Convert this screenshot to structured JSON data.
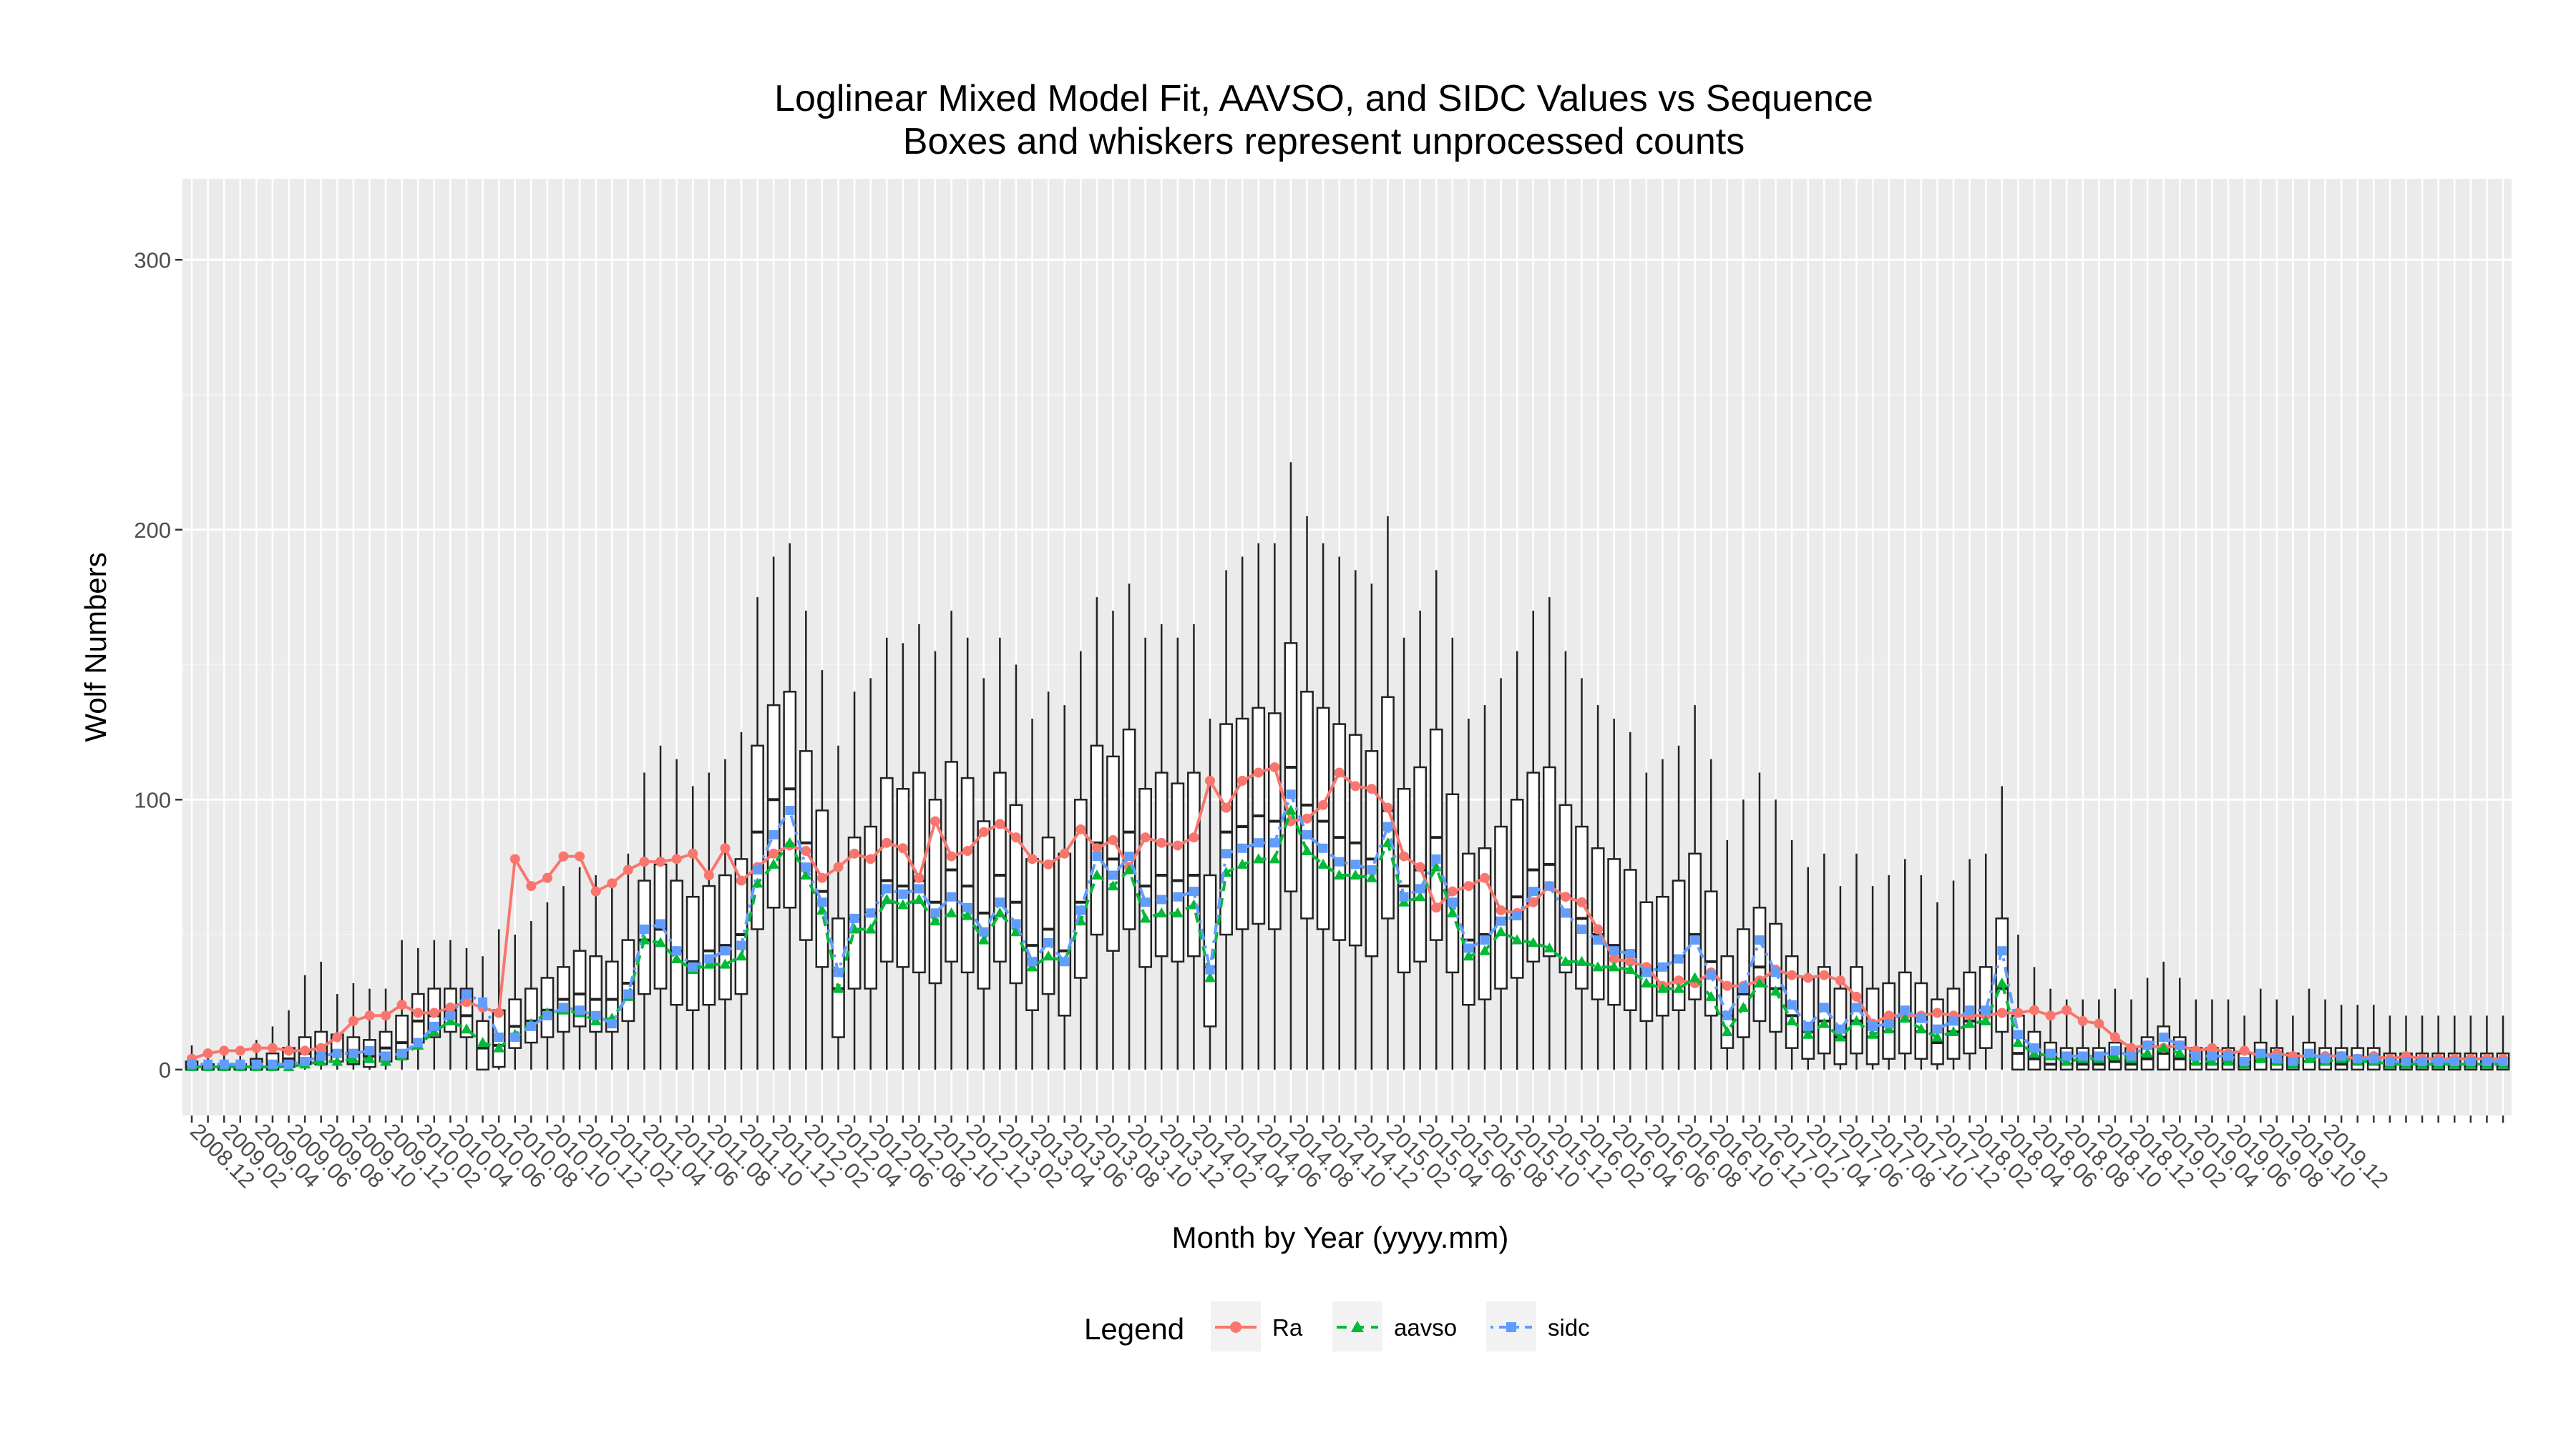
{
  "chart_data": {
    "type": "boxplot-line",
    "title": "Loglinear Mixed Model Fit, AAVSO, and SIDC Values vs Sequence",
    "subtitle": "Boxes and whiskers represent unprocessed counts",
    "xlabel": "Month by Year (yyyy.mm)",
    "ylabel": "Wolf Numbers",
    "ylim": [
      -17,
      330
    ],
    "yticks": [
      0,
      100,
      200,
      300
    ],
    "grid": true,
    "legend": {
      "title": "Legend",
      "position": "bottom",
      "entries": [
        {
          "name": "Ra",
          "color": "#F8766D",
          "marker": "circle",
          "dash": "solid"
        },
        {
          "name": "aavso",
          "color": "#00BA38",
          "marker": "triangle",
          "dash": "dashed"
        },
        {
          "name": "sidc",
          "color": "#619CFF",
          "marker": "square",
          "dash": "dotdash"
        }
      ]
    },
    "x_start": "2008.12",
    "x_tick_labels": [
      "2008.12",
      "2009.02",
      "2009.04",
      "2009.06",
      "2009.08",
      "2009.10",
      "2009.12",
      "2010.02",
      "2010.04",
      "2010.06",
      "2010.08",
      "2010.10",
      "2010.12",
      "2011.02",
      "2011.04",
      "2011.06",
      "2011.08",
      "2011.10",
      "2011.12",
      "2012.02",
      "2012.04",
      "2012.06",
      "2012.08",
      "2012.10",
      "2012.12",
      "2013.02",
      "2013.04",
      "2013.06",
      "2013.08",
      "2013.10",
      "2013.12",
      "2014.02",
      "2014.04",
      "2014.06",
      "2014.08",
      "2014.10",
      "2014.12",
      "2015.02",
      "2015.04",
      "2015.06",
      "2015.08",
      "2015.10",
      "2015.12",
      "2016.02",
      "2016.04",
      "2016.06",
      "2016.08",
      "2016.10",
      "2016.12",
      "2017.02",
      "2017.04",
      "2017.06",
      "2017.08",
      "2017.10",
      "2017.12",
      "2018.02",
      "2018.04",
      "2018.06",
      "2018.08",
      "2018.10",
      "2018.12",
      "2019.02",
      "2019.04",
      "2019.06",
      "2019.08",
      "2019.10",
      "2019.12"
    ],
    "series": [
      {
        "name": "Ra",
        "color": "#F8766D",
        "values": [
          4,
          6,
          7,
          7,
          8,
          8,
          7,
          7,
          8,
          12,
          18,
          20,
          20,
          24,
          21,
          21,
          23,
          25,
          23,
          21,
          78,
          68,
          71,
          79,
          79,
          66,
          69,
          74,
          77,
          77,
          78,
          80,
          72,
          82,
          70,
          75,
          80,
          83,
          81,
          71,
          75,
          80,
          78,
          84,
          82,
          71,
          92,
          79,
          81,
          88,
          91,
          86,
          78,
          76,
          80,
          89,
          82,
          85,
          75,
          86,
          84,
          83,
          86,
          107,
          97,
          107,
          110,
          112,
          92,
          93,
          98,
          110,
          105,
          104,
          97,
          79,
          75,
          60,
          66,
          68,
          71,
          59,
          58,
          62,
          68,
          64,
          62,
          52,
          41,
          40,
          38,
          31,
          33,
          32,
          36,
          31,
          31,
          33,
          37,
          35,
          34,
          35,
          33,
          27,
          17,
          20,
          20,
          20,
          21,
          20,
          20,
          20,
          21,
          21,
          22,
          20,
          22,
          18,
          17,
          12,
          8,
          9,
          8,
          9,
          7,
          8,
          6,
          7,
          5,
          6,
          5,
          5,
          5,
          5,
          4,
          5,
          4,
          5,
          4,
          4,
          4,
          4,
          4,
          4
        ]
      },
      {
        "name": "aavso",
        "color": "#00BA38",
        "values": [
          1,
          1,
          1,
          1,
          1,
          1,
          1,
          2,
          3,
          3,
          4,
          4,
          3,
          5,
          9,
          14,
          18,
          15,
          10,
          8,
          13,
          17,
          21,
          22,
          21,
          18,
          19,
          27,
          48,
          47,
          41,
          37,
          39,
          39,
          42,
          69,
          76,
          84,
          72,
          59,
          30,
          52,
          52,
          63,
          61,
          63,
          55,
          58,
          57,
          48,
          58,
          51,
          38,
          42,
          40,
          55,
          72,
          68,
          74,
          56,
          58,
          58,
          61,
          34,
          73,
          76,
          78,
          78,
          96,
          81,
          76,
          72,
          72,
          71,
          84,
          62,
          64,
          75,
          58,
          42,
          44,
          51,
          48,
          47,
          45,
          40,
          40,
          38,
          38,
          37,
          32,
          30,
          30,
          34,
          27,
          14,
          23,
          32,
          29,
          18,
          13,
          17,
          12,
          18,
          13,
          15,
          19,
          15,
          12,
          14,
          17,
          18,
          32,
          10,
          6,
          5,
          3,
          4,
          4,
          5,
          4,
          6,
          8,
          6,
          3,
          3,
          3,
          2,
          4,
          3,
          2,
          4,
          3,
          4,
          3,
          3,
          2,
          2,
          2,
          2,
          2,
          2,
          2,
          2
        ]
      },
      {
        "name": "sidc",
        "color": "#619CFF",
        "values": [
          2,
          2,
          2,
          2,
          2,
          2,
          2,
          3,
          5,
          6,
          6,
          7,
          5,
          6,
          10,
          16,
          20,
          28,
          25,
          12,
          12,
          16,
          20,
          23,
          22,
          20,
          17,
          28,
          52,
          54,
          44,
          38,
          41,
          44,
          46,
          74,
          87,
          96,
          75,
          62,
          36,
          56,
          58,
          67,
          65,
          67,
          58,
          64,
          60,
          51,
          62,
          54,
          40,
          47,
          40,
          59,
          79,
          72,
          79,
          62,
          63,
          64,
          66,
          37,
          80,
          82,
          84,
          84,
          102,
          87,
          82,
          77,
          76,
          74,
          90,
          64,
          67,
          78,
          62,
          45,
          48,
          55,
          57,
          66,
          68,
          58,
          52,
          48,
          44,
          43,
          36,
          38,
          41,
          48,
          35,
          20,
          30,
          48,
          36,
          24,
          16,
          23,
          15,
          23,
          16,
          17,
          22,
          19,
          15,
          18,
          22,
          22,
          44,
          13,
          8,
          6,
          5,
          5,
          5,
          7,
          5,
          9,
          12,
          9,
          5,
          5,
          5,
          3,
          6,
          4,
          3,
          6,
          4,
          5,
          4,
          4,
          3,
          3,
          3,
          3,
          3,
          3,
          3,
          3
        ]
      }
    ],
    "boxes": [
      [
        0,
        0,
        1,
        3,
        9
      ],
      [
        0,
        0,
        1,
        2,
        6
      ],
      [
        0,
        0,
        1,
        2,
        6
      ],
      [
        0,
        0,
        1,
        2,
        5
      ],
      [
        0,
        0,
        2,
        4,
        11
      ],
      [
        0,
        0,
        2,
        6,
        16
      ],
      [
        0,
        1,
        4,
        8,
        22
      ],
      [
        0,
        2,
        6,
        12,
        35
      ],
      [
        0,
        2,
        6,
        14,
        40
      ],
      [
        0,
        3,
        7,
        13,
        28
      ],
      [
        0,
        2,
        6,
        12,
        32
      ],
      [
        0,
        1,
        5,
        11,
        30
      ],
      [
        0,
        3,
        8,
        14,
        30
      ],
      [
        0,
        4,
        10,
        20,
        48
      ],
      [
        0,
        10,
        18,
        28,
        45
      ],
      [
        0,
        12,
        20,
        30,
        48
      ],
      [
        0,
        14,
        22,
        30,
        48
      ],
      [
        0,
        12,
        20,
        30,
        45
      ],
      [
        0,
        0,
        8,
        18,
        42
      ],
      [
        0,
        1,
        9,
        22,
        52
      ],
      [
        0,
        8,
        16,
        26,
        50
      ],
      [
        0,
        10,
        18,
        30,
        55
      ],
      [
        0,
        12,
        22,
        34,
        62
      ],
      [
        0,
        14,
        26,
        38,
        68
      ],
      [
        0,
        16,
        28,
        44,
        75
      ],
      [
        0,
        14,
        26,
        42,
        72
      ],
      [
        0,
        14,
        26,
        40,
        68
      ],
      [
        0,
        18,
        32,
        48,
        80
      ],
      [
        0,
        28,
        48,
        70,
        110
      ],
      [
        0,
        30,
        52,
        76,
        120
      ],
      [
        0,
        24,
        44,
        70,
        115
      ],
      [
        0,
        22,
        40,
        64,
        105
      ],
      [
        0,
        24,
        44,
        68,
        110
      ],
      [
        0,
        26,
        46,
        72,
        115
      ],
      [
        0,
        28,
        50,
        78,
        125
      ],
      [
        0,
        52,
        88,
        120,
        175
      ],
      [
        0,
        60,
        100,
        135,
        190
      ],
      [
        0,
        60,
        104,
        140,
        195
      ],
      [
        0,
        48,
        84,
        118,
        170
      ],
      [
        0,
        38,
        66,
        96,
        148
      ],
      [
        0,
        12,
        30,
        56,
        120
      ],
      [
        0,
        30,
        56,
        86,
        140
      ],
      [
        0,
        30,
        58,
        90,
        145
      ],
      [
        0,
        40,
        70,
        108,
        160
      ],
      [
        0,
        38,
        68,
        104,
        158
      ],
      [
        0,
        36,
        70,
        110,
        165
      ],
      [
        0,
        32,
        62,
        100,
        155
      ],
      [
        0,
        40,
        74,
        114,
        170
      ],
      [
        0,
        36,
        68,
        108,
        160
      ],
      [
        0,
        30,
        58,
        92,
        145
      ],
      [
        0,
        40,
        72,
        110,
        160
      ],
      [
        0,
        32,
        62,
        98,
        150
      ],
      [
        0,
        22,
        46,
        78,
        130
      ],
      [
        0,
        28,
        52,
        86,
        140
      ],
      [
        0,
        20,
        44,
        80,
        135
      ],
      [
        0,
        34,
        62,
        100,
        155
      ],
      [
        0,
        50,
        84,
        120,
        175
      ],
      [
        0,
        44,
        78,
        116,
        170
      ],
      [
        0,
        52,
        88,
        126,
        180
      ],
      [
        0,
        38,
        68,
        104,
        160
      ],
      [
        0,
        42,
        72,
        110,
        165
      ],
      [
        0,
        40,
        70,
        106,
        160
      ],
      [
        0,
        42,
        72,
        110,
        165
      ],
      [
        0,
        16,
        38,
        72,
        130
      ],
      [
        0,
        50,
        88,
        128,
        185
      ],
      [
        0,
        52,
        90,
        130,
        190
      ],
      [
        0,
        54,
        94,
        134,
        195
      ],
      [
        0,
        52,
        92,
        132,
        195
      ],
      [
        0,
        66,
        112,
        158,
        225
      ],
      [
        0,
        56,
        98,
        140,
        205
      ],
      [
        0,
        52,
        92,
        134,
        195
      ],
      [
        0,
        48,
        86,
        128,
        190
      ],
      [
        0,
        46,
        84,
        124,
        185
      ],
      [
        0,
        42,
        78,
        118,
        180
      ],
      [
        0,
        56,
        96,
        138,
        205
      ],
      [
        0,
        36,
        68,
        104,
        160
      ],
      [
        0,
        40,
        74,
        112,
        170
      ],
      [
        0,
        48,
        86,
        126,
        185
      ],
      [
        0,
        36,
        66,
        102,
        160
      ],
      [
        0,
        24,
        48,
        80,
        130
      ],
      [
        0,
        26,
        50,
        82,
        135
      ],
      [
        0,
        30,
        56,
        90,
        145
      ],
      [
        0,
        34,
        64,
        100,
        155
      ],
      [
        0,
        40,
        74,
        110,
        170
      ],
      [
        0,
        42,
        76,
        112,
        175
      ],
      [
        0,
        36,
        64,
        98,
        155
      ],
      [
        0,
        30,
        56,
        90,
        145
      ],
      [
        0,
        26,
        50,
        82,
        135
      ],
      [
        0,
        24,
        46,
        78,
        130
      ],
      [
        0,
        22,
        44,
        74,
        125
      ],
      [
        0,
        18,
        36,
        62,
        110
      ],
      [
        0,
        20,
        38,
        64,
        115
      ],
      [
        0,
        22,
        42,
        70,
        120
      ],
      [
        0,
        26,
        50,
        80,
        135
      ],
      [
        0,
        20,
        40,
        66,
        115
      ],
      [
        0,
        8,
        20,
        42,
        85
      ],
      [
        0,
        12,
        28,
        52,
        100
      ],
      [
        0,
        18,
        38,
        60,
        110
      ],
      [
        0,
        14,
        30,
        54,
        100
      ],
      [
        0,
        8,
        20,
        42,
        85
      ],
      [
        0,
        4,
        14,
        34,
        75
      ],
      [
        0,
        6,
        18,
        38,
        80
      ],
      [
        0,
        2,
        12,
        30,
        68
      ],
      [
        0,
        6,
        18,
        38,
        80
      ],
      [
        0,
        2,
        12,
        30,
        68
      ],
      [
        0,
        4,
        14,
        32,
        72
      ],
      [
        0,
        6,
        18,
        36,
        78
      ],
      [
        0,
        4,
        14,
        32,
        72
      ],
      [
        0,
        2,
        10,
        26,
        62
      ],
      [
        0,
        4,
        14,
        30,
        70
      ],
      [
        0,
        6,
        18,
        36,
        78
      ],
      [
        0,
        8,
        20,
        38,
        80
      ],
      [
        0,
        14,
        30,
        56,
        105
      ],
      [
        0,
        0,
        6,
        20,
        50
      ],
      [
        0,
        0,
        4,
        14,
        38
      ],
      [
        0,
        0,
        2,
        10,
        30
      ],
      [
        0,
        0,
        2,
        8,
        26
      ],
      [
        0,
        0,
        2,
        8,
        26
      ],
      [
        0,
        0,
        2,
        8,
        26
      ],
      [
        0,
        0,
        3,
        10,
        30
      ],
      [
        0,
        0,
        2,
        8,
        26
      ],
      [
        0,
        0,
        4,
        12,
        34
      ],
      [
        0,
        0,
        6,
        16,
        40
      ],
      [
        0,
        0,
        4,
        12,
        34
      ],
      [
        0,
        0,
        2,
        8,
        26
      ],
      [
        0,
        0,
        2,
        8,
        26
      ],
      [
        0,
        0,
        2,
        8,
        26
      ],
      [
        0,
        0,
        1,
        6,
        20
      ],
      [
        0,
        0,
        3,
        10,
        30
      ],
      [
        0,
        0,
        2,
        8,
        26
      ],
      [
        0,
        0,
        1,
        6,
        20
      ],
      [
        0,
        0,
        3,
        10,
        30
      ],
      [
        0,
        0,
        2,
        8,
        26
      ],
      [
        0,
        0,
        2,
        8,
        24
      ],
      [
        0,
        0,
        2,
        8,
        24
      ],
      [
        0,
        0,
        2,
        8,
        24
      ],
      [
        0,
        0,
        1,
        6,
        20
      ],
      [
        0,
        0,
        1,
        6,
        20
      ],
      [
        0,
        0,
        1,
        6,
        20
      ],
      [
        0,
        0,
        1,
        6,
        20
      ],
      [
        0,
        0,
        1,
        6,
        20
      ],
      [
        0,
        0,
        1,
        6,
        20
      ],
      [
        0,
        0,
        1,
        6,
        20
      ],
      [
        0,
        0,
        1,
        6,
        20
      ]
    ]
  }
}
